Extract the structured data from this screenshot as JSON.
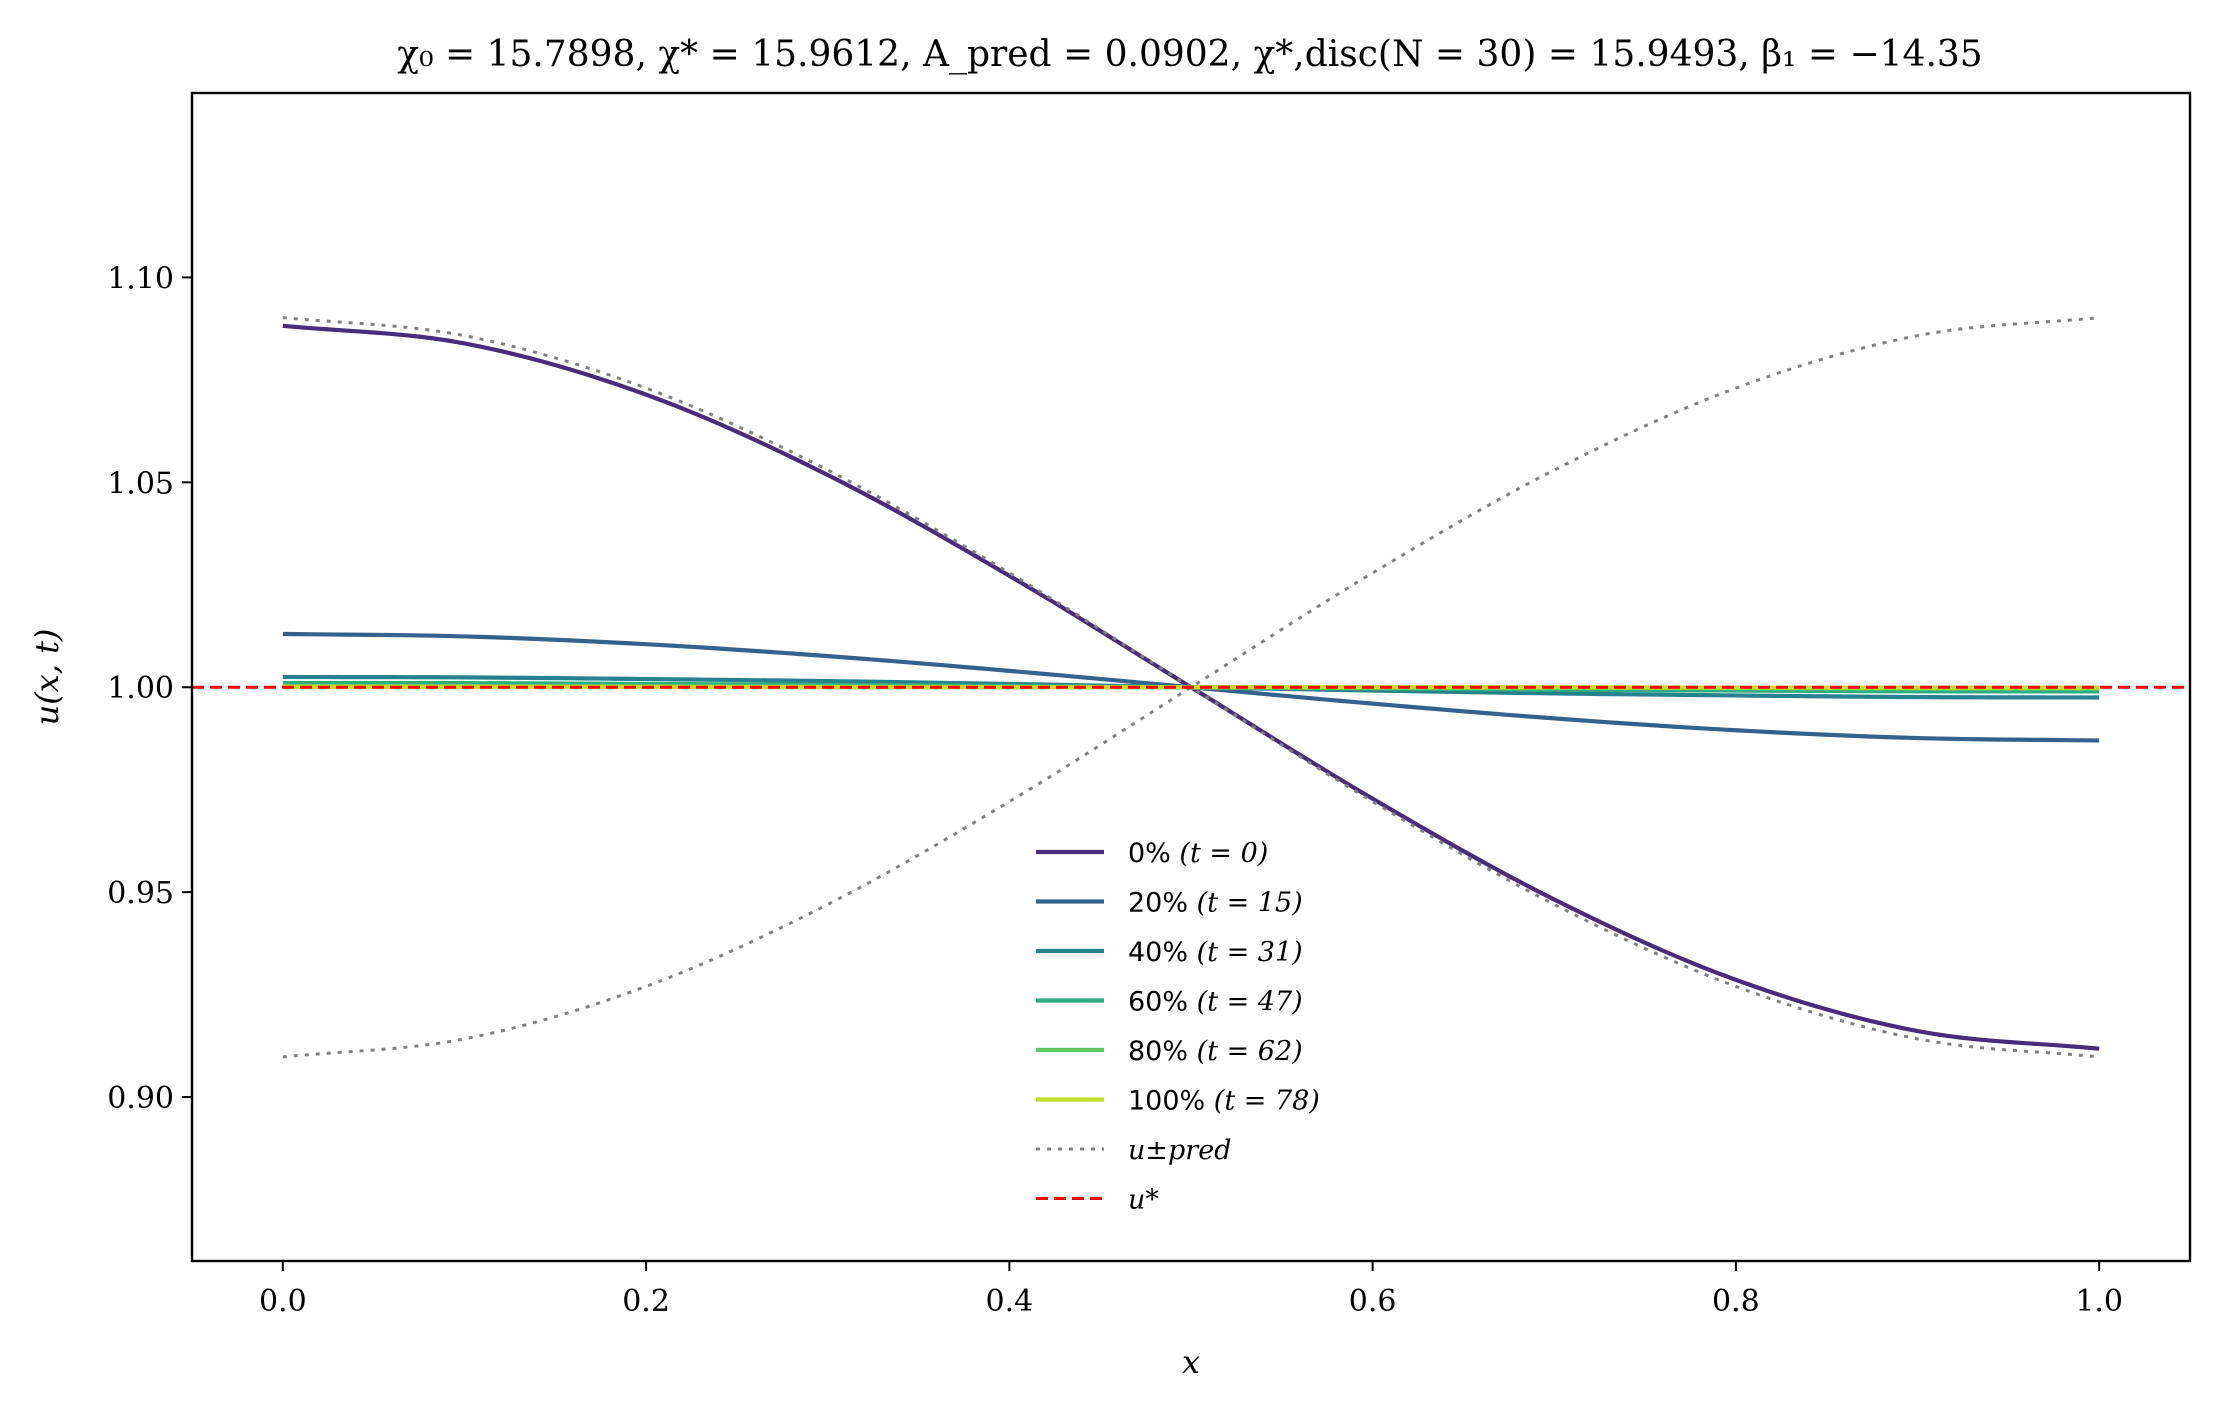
{
  "chart_data": {
    "type": "line",
    "title": "χ₀ = 15.7898,  χ* = 15.9612,  A_pred = 0.0902,  χ*,disc(N = 30) = 15.9493,  β₁ = −14.35",
    "title_parts": {
      "chi0": "χ₀ = 15.7898",
      "chistar": "χ* = 15.9612",
      "apred": "A_pred = 0.0902",
      "chidisc": "χ*,disc(N = 30) = 15.9493",
      "beta1": "β₁ = −14.35"
    },
    "xlabel": "x",
    "ylabel": "u(x, t)",
    "xlim": [
      -0.05,
      1.05
    ],
    "ylim": [
      0.86,
      1.145
    ],
    "xticks": [
      0.0,
      0.2,
      0.4,
      0.6,
      0.8,
      1.0
    ],
    "xtick_labels": [
      "0.0",
      "0.2",
      "0.4",
      "0.6",
      "0.8",
      "1.0"
    ],
    "yticks": [
      0.9,
      0.95,
      1.0,
      1.05,
      1.1
    ],
    "ytick_labels": [
      "0.90",
      "0.95",
      "1.00",
      "1.05",
      "1.10"
    ],
    "grid": false,
    "legend_position": "lower-center",
    "x": [
      0.0,
      0.1,
      0.2,
      0.3,
      0.4,
      0.5,
      0.6,
      0.7,
      0.8,
      0.9,
      1.0
    ],
    "series": [
      {
        "name": "0% (t = 0)",
        "color": "#472d7b",
        "style": "solid",
        "y": [
          1.0882,
          1.0839,
          1.0714,
          1.0518,
          1.0272,
          1.0,
          0.9728,
          0.9482,
          0.9286,
          0.9161,
          0.9118
        ]
      },
      {
        "name": "20% (t = 15)",
        "color": "#33638d",
        "style": "solid",
        "y": [
          1.013,
          1.0124,
          1.0105,
          1.0076,
          1.004,
          1.0,
          0.996,
          0.9924,
          0.9895,
          0.9876,
          0.987
        ]
      },
      {
        "name": "40% (t = 31)",
        "color": "#26828e",
        "style": "solid",
        "y": [
          1.0025,
          1.0024,
          1.002,
          1.0015,
          1.0008,
          1.0,
          0.9992,
          0.9985,
          0.998,
          0.9976,
          0.9975
        ]
      },
      {
        "name": "60% (t = 47)",
        "color": "#29af7f",
        "style": "solid",
        "y": [
          1.001,
          1.001,
          1.0008,
          1.0006,
          1.0003,
          1.0,
          0.9997,
          0.9994,
          0.9992,
          0.999,
          0.999
        ]
      },
      {
        "name": "80% (t = 62)",
        "color": "#5ec962",
        "style": "solid",
        "y": [
          1.0003,
          1.0003,
          1.0002,
          1.0002,
          1.0001,
          1.0,
          0.9999,
          0.9998,
          0.9998,
          0.9997,
          0.9997
        ]
      },
      {
        "name": "100% (t = 78)",
        "color": "#bddf26",
        "style": "solid",
        "y": [
          1.0001,
          1.0001,
          1.0001,
          1.0,
          1.0,
          1.0,
          1.0,
          1.0,
          0.9999,
          0.9999,
          0.9999
        ]
      },
      {
        "name": "u±pred",
        "color": "#808080",
        "style": "dotted",
        "y": [
          1.0902,
          1.0858,
          1.073,
          1.053,
          1.0279,
          1.0,
          0.9721,
          0.947,
          0.927,
          0.9142,
          0.9098
        ]
      },
      {
        "name": "u±pred",
        "color": "#808080",
        "style": "dotted",
        "legend": false,
        "y": [
          0.9098,
          0.9142,
          0.927,
          0.947,
          0.9721,
          1.0,
          1.0279,
          1.053,
          1.073,
          1.0858,
          1.0902
        ]
      },
      {
        "name": "u*",
        "color": "#ff0000",
        "style": "dashed",
        "full_width": true,
        "y": [
          1.0,
          1.0,
          1.0,
          1.0,
          1.0,
          1.0,
          1.0,
          1.0,
          1.0,
          1.0,
          1.0
        ]
      }
    ],
    "legend": [
      {
        "series": 0,
        "label_text": "0%",
        "label_math": "(t = 0)"
      },
      {
        "series": 1,
        "label_text": "20%",
        "label_math": "(t = 15)"
      },
      {
        "series": 2,
        "label_text": "40%",
        "label_math": "(t = 31)"
      },
      {
        "series": 3,
        "label_text": "60%",
        "label_math": "(t = 47)"
      },
      {
        "series": 4,
        "label_text": "80%",
        "label_math": "(t = 62)"
      },
      {
        "series": 5,
        "label_text": "100%",
        "label_math": "(t = 78)"
      },
      {
        "series": 6,
        "label_text": "",
        "label_math": "u±pred"
      },
      {
        "series": 8,
        "label_text": "",
        "label_math": "u*"
      }
    ]
  }
}
